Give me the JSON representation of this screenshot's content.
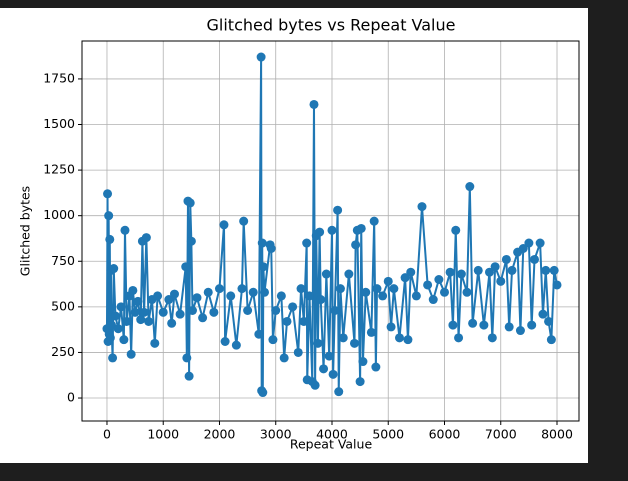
{
  "chart_data": {
    "type": "line",
    "title": "Glitched bytes vs Repeat Value",
    "x_label": "Repeat Value",
    "y_label": "Glitched bytes",
    "xlim": [
      -444,
      8391
    ],
    "ylim": [
      -126,
      1958
    ],
    "xticks": [
      0,
      1000,
      2000,
      3000,
      4000,
      5000,
      6000,
      7000,
      8000
    ],
    "yticks": [
      0,
      250,
      500,
      750,
      1000,
      1250,
      1500,
      1750
    ],
    "grid": true,
    "marker": true,
    "series": [
      {
        "color": "#1f77b4",
        "x": [
          0,
          10,
          20,
          30,
          40,
          50,
          60,
          70,
          80,
          100,
          120,
          150,
          200,
          250,
          300,
          320,
          350,
          400,
          430,
          460,
          500,
          550,
          600,
          630,
          660,
          700,
          740,
          800,
          850,
          900,
          1000,
          1100,
          1150,
          1200,
          1300,
          1400,
          1420,
          1440,
          1460,
          1480,
          1500,
          1520,
          1600,
          1700,
          1800,
          1900,
          2000,
          2080,
          2100,
          2200,
          2300,
          2400,
          2430,
          2500,
          2600,
          2700,
          2740,
          2750,
          2760,
          2770,
          2780,
          2800,
          2900,
          2920,
          2950,
          3000,
          3100,
          3150,
          3200,
          3300,
          3400,
          3450,
          3500,
          3550,
          3560,
          3600,
          3650,
          3680,
          3700,
          3720,
          3750,
          3780,
          3800,
          3850,
          3900,
          3950,
          4000,
          4020,
          4050,
          4100,
          4120,
          4150,
          4200,
          4300,
          4400,
          4420,
          4450,
          4500,
          4520,
          4550,
          4600,
          4700,
          4750,
          4780,
          4800,
          4900,
          5000,
          5050,
          5100,
          5200,
          5300,
          5350,
          5400,
          5500,
          5600,
          5700,
          5800,
          5900,
          6000,
          6100,
          6150,
          6200,
          6250,
          6300,
          6400,
          6450,
          6500,
          6600,
          6700,
          6800,
          6850,
          6900,
          7000,
          7100,
          7150,
          7200,
          7300,
          7350,
          7400,
          7500,
          7550,
          7600,
          7700,
          7750,
          7800,
          7850,
          7900,
          7950,
          8000
        ],
        "values": [
          380,
          1120,
          310,
          1000,
          350,
          870,
          330,
          700,
          400,
          220,
          710,
          450,
          380,
          500,
          320,
          920,
          420,
          560,
          240,
          590,
          470,
          530,
          430,
          860,
          470,
          880,
          420,
          540,
          300,
          560,
          470,
          540,
          410,
          570,
          460,
          720,
          220,
          1080,
          120,
          1070,
          860,
          480,
          550,
          440,
          580,
          470,
          600,
          950,
          310,
          560,
          290,
          600,
          970,
          480,
          580,
          350,
          1870,
          40,
          850,
          30,
          720,
          580,
          840,
          820,
          320,
          480,
          560,
          220,
          420,
          500,
          250,
          600,
          420,
          850,
          100,
          560,
          90,
          1610,
          70,
          890,
          300,
          910,
          540,
          160,
          680,
          230,
          920,
          130,
          480,
          1030,
          35,
          600,
          330,
          680,
          300,
          840,
          920,
          90,
          930,
          200,
          580,
          360,
          970,
          170,
          600,
          560,
          640,
          390,
          600,
          330,
          660,
          320,
          690,
          560,
          1050,
          620,
          540,
          650,
          580,
          690,
          400,
          920,
          330,
          680,
          580,
          1160,
          410,
          700,
          400,
          690,
          330,
          720,
          640,
          760,
          390,
          700,
          800,
          370,
          820,
          850,
          400,
          760,
          850,
          460,
          700,
          420,
          320,
          700,
          620
        ]
      }
    ]
  }
}
